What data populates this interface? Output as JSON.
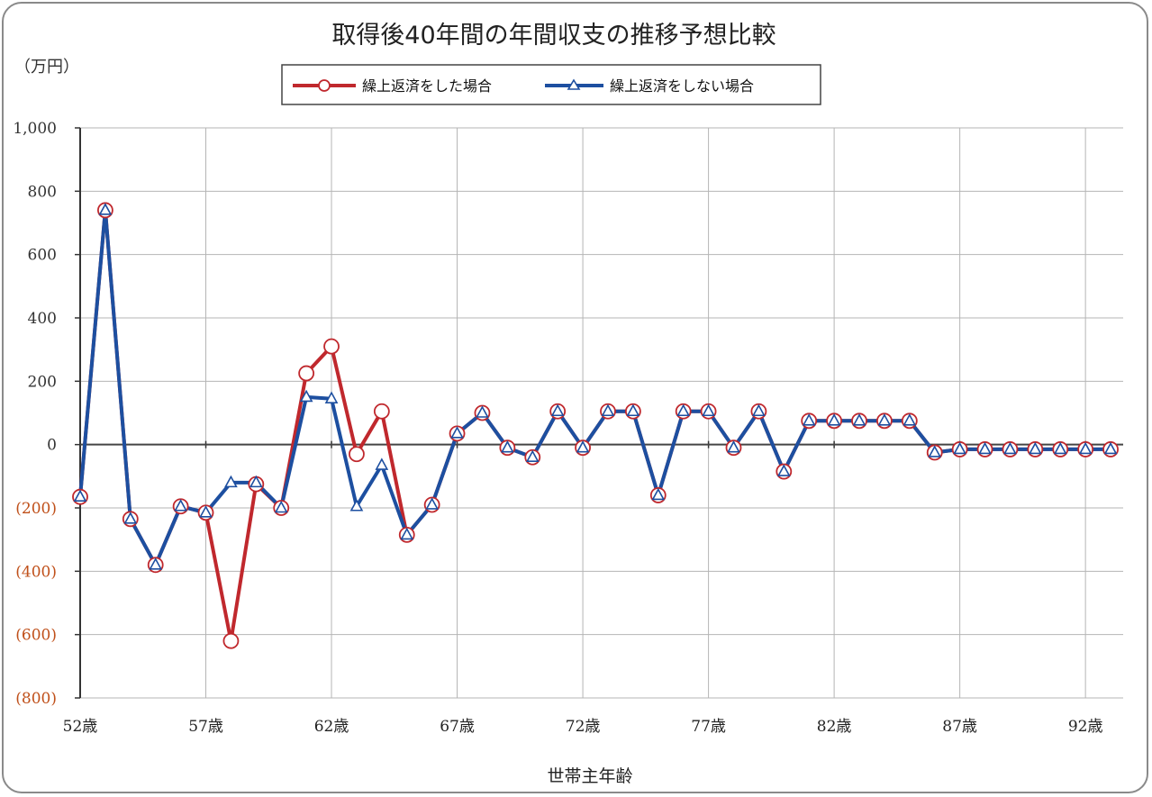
{
  "chart_data": {
    "type": "line",
    "title": "取得後40年間の年間収支の推移予想比較",
    "unit_label": "（万円）",
    "xlabel": "世帯主年齢",
    "ylabel": "",
    "ylim": [
      -800,
      1000
    ],
    "yticks": [
      {
        "value": 1000,
        "label": "1,000",
        "color": "#333333"
      },
      {
        "value": 800,
        "label": "800",
        "color": "#333333"
      },
      {
        "value": 600,
        "label": "600",
        "color": "#333333"
      },
      {
        "value": 400,
        "label": "400",
        "color": "#333333"
      },
      {
        "value": 200,
        "label": "200",
        "color": "#333333"
      },
      {
        "value": 0,
        "label": "0",
        "color": "#333333"
      },
      {
        "value": -200,
        "label": "(200)",
        "color": "#c0501a"
      },
      {
        "value": -400,
        "label": "(400)",
        "color": "#c0501a"
      },
      {
        "value": -600,
        "label": "(600)",
        "color": "#c0501a"
      },
      {
        "value": -800,
        "label": "(800)",
        "color": "#c0501a"
      }
    ],
    "x": [
      52,
      53,
      54,
      55,
      56,
      57,
      58,
      59,
      60,
      61,
      62,
      63,
      64,
      65,
      66,
      67,
      68,
      69,
      70,
      71,
      72,
      73,
      74,
      75,
      76,
      77,
      78,
      79,
      80,
      81,
      82,
      83,
      84,
      85,
      86,
      87,
      88,
      89,
      90,
      91,
      92,
      93
    ],
    "xlim": [
      52,
      93.5
    ],
    "xticks": [
      {
        "value": 52,
        "label": "52歳"
      },
      {
        "value": 57,
        "label": "57歳"
      },
      {
        "value": 62,
        "label": "62歳"
      },
      {
        "value": 67,
        "label": "67歳"
      },
      {
        "value": 72,
        "label": "72歳"
      },
      {
        "value": 77,
        "label": "77歳"
      },
      {
        "value": 82,
        "label": "82歳"
      },
      {
        "value": 87,
        "label": "87歳"
      },
      {
        "value": 92,
        "label": "92歳"
      }
    ],
    "grid": true,
    "legend_position": "top-center",
    "series": [
      {
        "name": "繰上返済をした場合",
        "color": "#c0282d",
        "marker": "circle",
        "values": [
          -165,
          740,
          -235,
          -380,
          -195,
          -215,
          -620,
          -125,
          -200,
          225,
          310,
          -30,
          105,
          -285,
          -190,
          35,
          100,
          -10,
          -40,
          105,
          -10,
          105,
          105,
          -160,
          105,
          105,
          -10,
          105,
          -85,
          75,
          75,
          75,
          75,
          75,
          -25,
          -15,
          -15,
          -15,
          -15,
          -15,
          -15,
          -15
        ]
      },
      {
        "name": "繰上返済をしない場合",
        "color": "#1d4fa0",
        "marker": "triangle",
        "values": [
          -165,
          740,
          -235,
          -380,
          -195,
          -215,
          -120,
          -120,
          -200,
          150,
          145,
          -195,
          -65,
          -285,
          -190,
          35,
          100,
          -10,
          -40,
          105,
          -10,
          105,
          105,
          -160,
          105,
          105,
          -10,
          105,
          -85,
          75,
          75,
          75,
          75,
          75,
          -25,
          -15,
          -15,
          -15,
          -15,
          -15,
          -15,
          -15
        ]
      }
    ]
  }
}
